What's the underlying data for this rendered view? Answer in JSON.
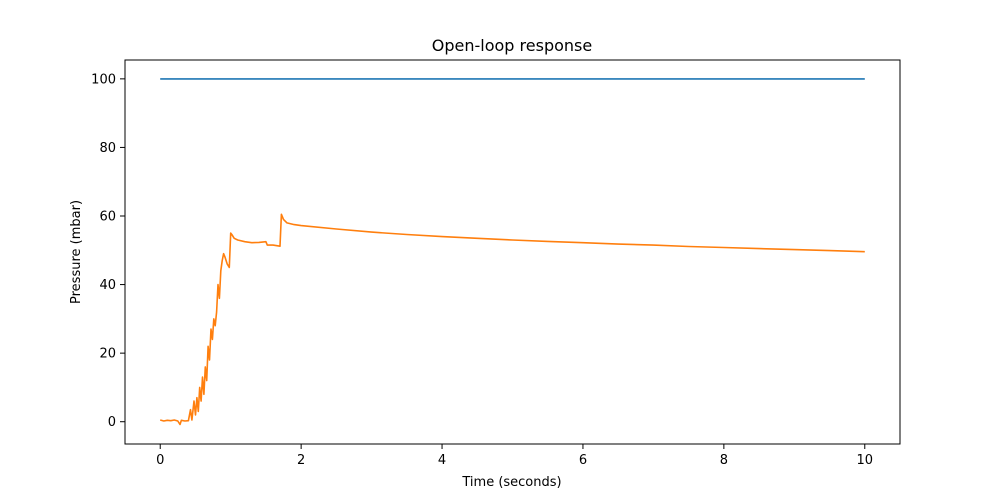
{
  "chart_data": {
    "type": "line",
    "title": "Open-loop response",
    "xlabel": "Time (seconds)",
    "ylabel": "Pressure (mbar)",
    "xlim": [
      -0.5,
      10.5
    ],
    "ylim": [
      -6.5,
      105.5
    ],
    "xticks": [
      0,
      2,
      4,
      6,
      8,
      10
    ],
    "yticks": [
      0,
      20,
      40,
      60,
      80,
      100
    ],
    "grid": false,
    "series": [
      {
        "color": "#1f77b4",
        "x": [
          0,
          10
        ],
        "y": [
          100,
          100
        ]
      },
      {
        "color": "#ff7f0e",
        "x": [
          0,
          0.05,
          0.1,
          0.15,
          0.2,
          0.25,
          0.28,
          0.3,
          0.35,
          0.4,
          0.43,
          0.45,
          0.48,
          0.5,
          0.52,
          0.54,
          0.56,
          0.58,
          0.6,
          0.62,
          0.64,
          0.66,
          0.68,
          0.7,
          0.72,
          0.74,
          0.76,
          0.78,
          0.8,
          0.82,
          0.84,
          0.86,
          0.88,
          0.9,
          0.92,
          0.95,
          0.98,
          1.0,
          1.02,
          1.05,
          1.1,
          1.2,
          1.3,
          1.4,
          1.5,
          1.52,
          1.55,
          1.6,
          1.7,
          1.72,
          1.75,
          1.8,
          1.9,
          2.0,
          2.5,
          3.0,
          3.5,
          4.0,
          4.5,
          5.0,
          5.5,
          6.0,
          6.5,
          7.0,
          7.5,
          8.0,
          8.5,
          9.0,
          9.5,
          10.0
        ],
        "y": [
          0.5,
          0.2,
          0.4,
          0.3,
          0.5,
          0.2,
          -0.8,
          0.4,
          0.2,
          0.3,
          3.5,
          0.5,
          6,
          2,
          7,
          3,
          10,
          6,
          13,
          8,
          16,
          12,
          22,
          18,
          27,
          24,
          30,
          28,
          32,
          40,
          36,
          44,
          47,
          49,
          48,
          46,
          45,
          55,
          54.5,
          53.5,
          53,
          52.5,
          52.2,
          52.3,
          52.5,
          51.5,
          51.5,
          51.5,
          51.2,
          60.5,
          59,
          58,
          57.5,
          57.2,
          56.2,
          55.3,
          54.6,
          54,
          53.5,
          53,
          52.6,
          52.2,
          51.8,
          51.5,
          51.1,
          50.8,
          50.5,
          50.2,
          49.9,
          49.6
        ]
      }
    ]
  }
}
